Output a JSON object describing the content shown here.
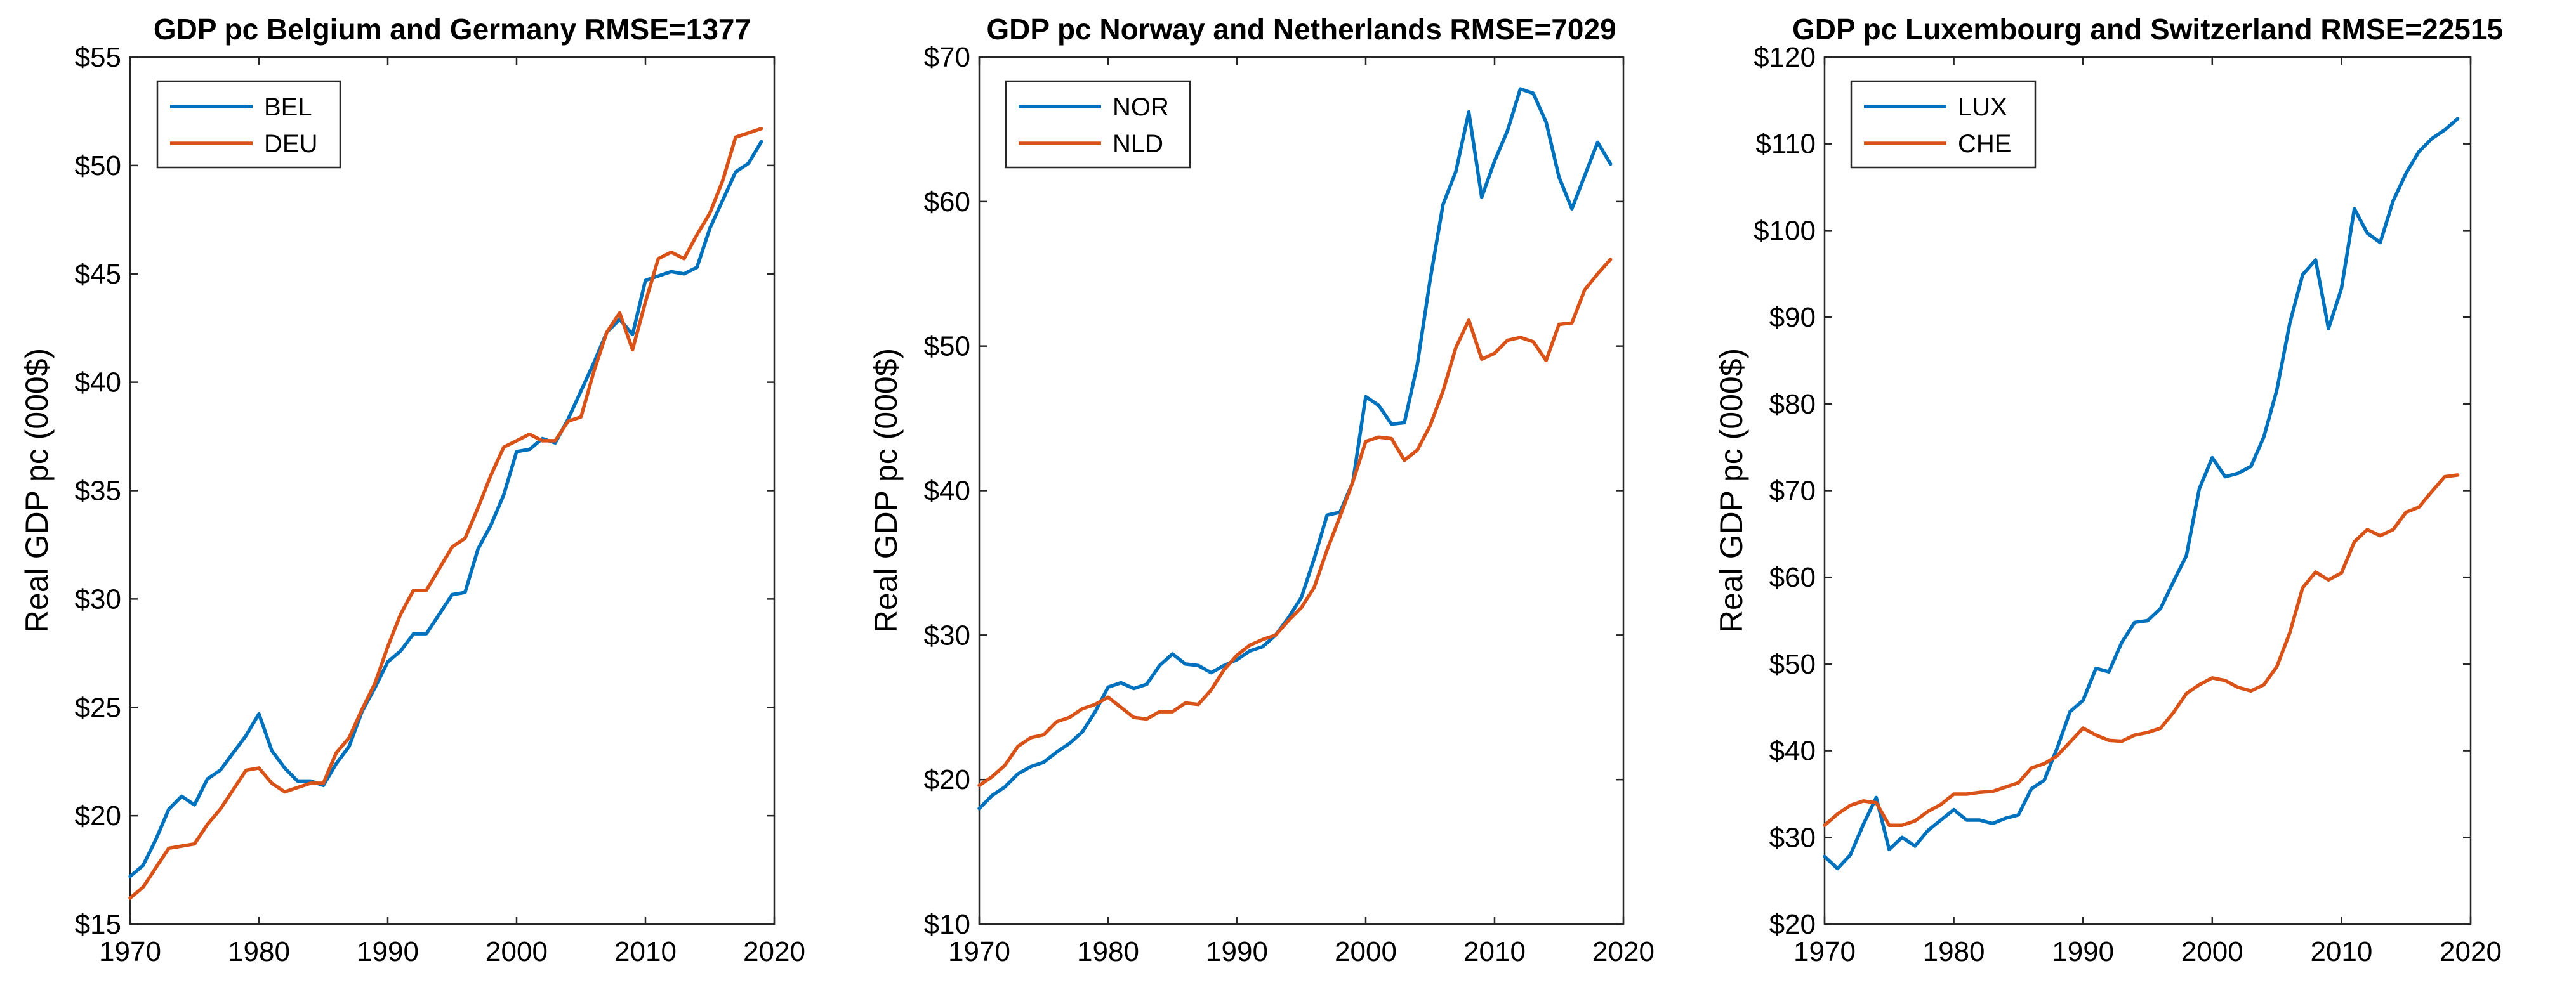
{
  "chart_data": [
    {
      "type": "line",
      "title": "GDP pc Belgium and Germany RMSE=1377",
      "xlabel": "",
      "ylabel": "Real GDP pc (000$)",
      "xlim": [
        1970,
        2020
      ],
      "ylim": [
        15,
        55
      ],
      "xticks": [
        1970,
        1980,
        1990,
        2000,
        2010,
        2020
      ],
      "yticks": [
        15,
        20,
        25,
        30,
        35,
        40,
        45,
        50,
        55
      ],
      "xtick_labels": [
        "1970",
        "1980",
        "1990",
        "2000",
        "2010",
        "2020"
      ],
      "ytick_labels": [
        "$15",
        "$20",
        "$25",
        "$30",
        "$35",
        "$40",
        "$45",
        "$50",
        "$55"
      ],
      "legend_position": "top-left",
      "x": [
        1970,
        1971,
        1972,
        1973,
        1974,
        1975,
        1976,
        1977,
        1978,
        1979,
        1980,
        1981,
        1982,
        1983,
        1984,
        1985,
        1986,
        1987,
        1988,
        1989,
        1990,
        1991,
        1992,
        1993,
        1994,
        1995,
        1996,
        1997,
        1998,
        1999,
        2000,
        2001,
        2002,
        2003,
        2004,
        2005,
        2006,
        2007,
        2008,
        2009,
        2010,
        2011,
        2012,
        2013,
        2014,
        2015,
        2016,
        2017,
        2018,
        2019
      ],
      "series": [
        {
          "name": "BEL",
          "color": "#0072BD",
          "values": [
            17.2,
            17.7,
            18.9,
            20.3,
            20.9,
            20.5,
            21.7,
            22.1,
            22.9,
            23.7,
            24.7,
            23.0,
            22.2,
            21.6,
            21.6,
            21.4,
            22.4,
            23.2,
            24.8,
            25.9,
            27.1,
            27.6,
            28.4,
            28.4,
            29.3,
            30.2,
            30.3,
            32.3,
            33.4,
            34.8,
            36.8,
            36.9,
            37.4,
            37.2,
            38.3,
            39.6,
            40.9,
            42.3,
            42.9,
            42.2,
            44.7,
            44.9,
            45.1,
            45.0,
            45.3,
            47.1,
            48.4,
            49.7,
            50.1,
            51.1
          ]
        },
        {
          "name": "DEU",
          "color": "#D95319",
          "values": [
            16.2,
            16.7,
            17.6,
            18.5,
            18.6,
            18.7,
            19.6,
            20.3,
            21.2,
            22.1,
            22.2,
            21.5,
            21.1,
            21.3,
            21.5,
            21.5,
            22.9,
            23.6,
            24.9,
            26.1,
            27.8,
            29.3,
            30.4,
            30.4,
            31.4,
            32.4,
            32.8,
            34.2,
            35.7,
            37.0,
            37.3,
            37.6,
            37.3,
            37.3,
            38.2,
            38.4,
            40.5,
            42.3,
            43.2,
            41.5,
            43.7,
            45.7,
            46.0,
            45.7,
            46.8,
            47.8,
            49.3,
            51.3,
            51.5,
            51.7
          ]
        }
      ]
    },
    {
      "type": "line",
      "title": "GDP pc Norway and Netherlands RMSE=7029",
      "xlabel": "",
      "ylabel": "Real GDP pc (000$)",
      "xlim": [
        1970,
        2020
      ],
      "ylim": [
        10,
        70
      ],
      "xticks": [
        1970,
        1980,
        1990,
        2000,
        2010,
        2020
      ],
      "yticks": [
        10,
        20,
        30,
        40,
        50,
        60,
        70
      ],
      "xtick_labels": [
        "1970",
        "1980",
        "1990",
        "2000",
        "2010",
        "2020"
      ],
      "ytick_labels": [
        "$10",
        "$20",
        "$30",
        "$40",
        "$50",
        "$60",
        "$70"
      ],
      "legend_position": "top-left",
      "x": [
        1970,
        1971,
        1972,
        1973,
        1974,
        1975,
        1976,
        1977,
        1978,
        1979,
        1980,
        1981,
        1982,
        1983,
        1984,
        1985,
        1986,
        1987,
        1988,
        1989,
        1990,
        1991,
        1992,
        1993,
        1994,
        1995,
        1996,
        1997,
        1998,
        1999,
        2000,
        2001,
        2002,
        2003,
        2004,
        2005,
        2006,
        2007,
        2008,
        2009,
        2010,
        2011,
        2012,
        2013,
        2014,
        2015,
        2016,
        2017,
        2018,
        2019
      ],
      "series": [
        {
          "name": "NOR",
          "color": "#0072BD",
          "values": [
            18.0,
            18.9,
            19.5,
            20.4,
            20.9,
            21.2,
            21.9,
            22.5,
            23.3,
            24.7,
            26.4,
            26.7,
            26.3,
            26.6,
            27.9,
            28.7,
            28.0,
            27.9,
            27.4,
            27.9,
            28.3,
            28.9,
            29.2,
            30.0,
            31.2,
            32.6,
            35.3,
            38.3,
            38.5,
            40.6,
            46.5,
            45.9,
            44.6,
            44.7,
            48.7,
            54.6,
            59.8,
            62.1,
            66.2,
            60.3,
            62.8,
            64.9,
            67.8,
            67.5,
            65.5,
            61.7,
            59.5,
            61.8,
            64.1,
            62.6
          ]
        },
        {
          "name": "NLD",
          "color": "#D95319",
          "values": [
            19.6,
            20.2,
            21.0,
            22.3,
            22.9,
            23.1,
            24.0,
            24.3,
            24.9,
            25.2,
            25.7,
            25.0,
            24.3,
            24.2,
            24.7,
            24.7,
            25.3,
            25.2,
            26.2,
            27.6,
            28.6,
            29.3,
            29.7,
            30.0,
            31.0,
            31.9,
            33.3,
            35.9,
            38.2,
            40.6,
            43.4,
            43.7,
            43.6,
            42.1,
            42.8,
            44.5,
            46.9,
            49.9,
            51.8,
            49.1,
            49.5,
            50.4,
            50.6,
            50.3,
            49.0,
            51.5,
            51.6,
            53.9,
            55.0,
            56.0
          ]
        }
      ]
    },
    {
      "type": "line",
      "title": "GDP pc Luxembourg and Switzerland RMSE=22515",
      "xlabel": "",
      "ylabel": "Real GDP pc (000$)",
      "xlim": [
        1970,
        2020
      ],
      "ylim": [
        20,
        120
      ],
      "xticks": [
        1970,
        1980,
        1990,
        2000,
        2010,
        2020
      ],
      "yticks": [
        20,
        30,
        40,
        50,
        60,
        70,
        80,
        90,
        100,
        110,
        120
      ],
      "xtick_labels": [
        "1970",
        "1980",
        "1990",
        "2000",
        "2010",
        "2020"
      ],
      "ytick_labels": [
        "$20",
        "$30",
        "$40",
        "$50",
        "$60",
        "$70",
        "$80",
        "$90",
        "$100",
        "$110",
        "$120"
      ],
      "legend_position": "top-left",
      "x": [
        1970,
        1971,
        1972,
        1973,
        1974,
        1975,
        1976,
        1977,
        1978,
        1979,
        1980,
        1981,
        1982,
        1983,
        1984,
        1985,
        1986,
        1987,
        1988,
        1989,
        1990,
        1991,
        1992,
        1993,
        1994,
        1995,
        1996,
        1997,
        1998,
        1999,
        2000,
        2001,
        2002,
        2003,
        2004,
        2005,
        2006,
        2007,
        2008,
        2009,
        2010,
        2011,
        2012,
        2013,
        2014,
        2015,
        2016,
        2017,
        2018,
        2019
      ],
      "series": [
        {
          "name": "LUX",
          "color": "#0072BD",
          "values": [
            27.8,
            26.4,
            28.0,
            31.5,
            34.6,
            28.6,
            30.0,
            29.0,
            30.8,
            32.0,
            33.2,
            32.0,
            32.0,
            31.6,
            32.2,
            32.6,
            35.6,
            36.6,
            40.3,
            44.5,
            45.8,
            49.5,
            49.1,
            52.5,
            54.8,
            55.0,
            56.4,
            59.5,
            62.5,
            70.2,
            73.8,
            71.6,
            72.0,
            72.8,
            76.2,
            81.6,
            89.3,
            94.9,
            96.6,
            88.7,
            93.3,
            102.5,
            99.7,
            98.6,
            103.4,
            106.6,
            109.1,
            110.6,
            111.6,
            112.9
          ]
        },
        {
          "name": "CHE",
          "color": "#D95319",
          "values": [
            31.4,
            32.7,
            33.7,
            34.2,
            34.0,
            31.4,
            31.4,
            31.9,
            33.0,
            33.8,
            35.0,
            35.0,
            35.2,
            35.3,
            35.8,
            36.3,
            38.0,
            38.5,
            39.4,
            41.0,
            42.6,
            41.8,
            41.2,
            41.1,
            41.8,
            42.1,
            42.6,
            44.4,
            46.6,
            47.6,
            48.4,
            48.1,
            47.3,
            46.9,
            47.6,
            49.7,
            53.6,
            58.8,
            60.6,
            59.7,
            60.5,
            64.1,
            65.5,
            64.8,
            65.5,
            67.5,
            68.1,
            69.9,
            71.6,
            71.8
          ]
        }
      ]
    }
  ]
}
